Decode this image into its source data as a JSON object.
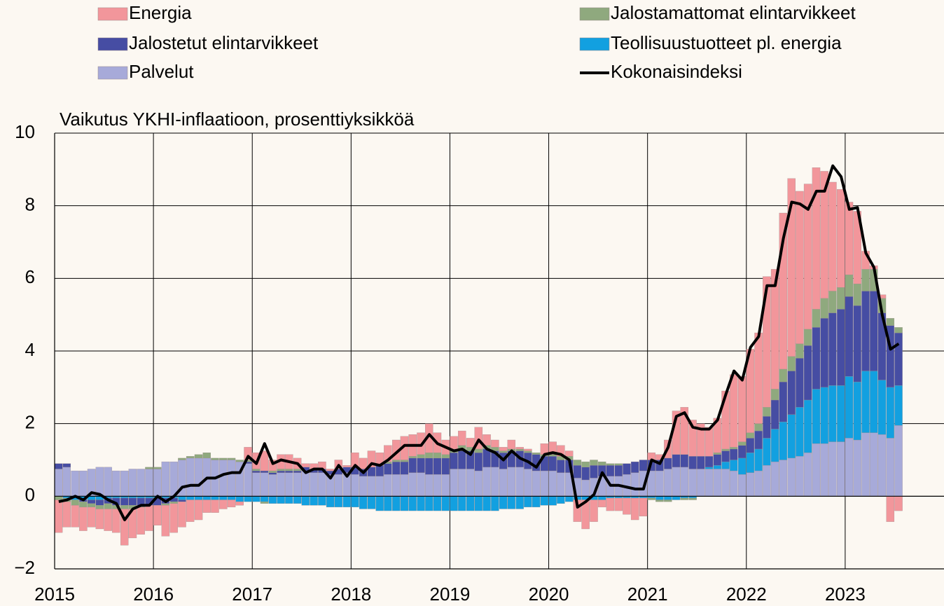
{
  "chart_data": {
    "type": "stacked_bar",
    "y_axis_label": "Vaikutus YKHI-inflaatioon, prosenttiyksikköä",
    "xlim": [
      2015,
      2024
    ],
    "xticks": [
      2015,
      2016,
      2017,
      2018,
      2019,
      2020,
      2021,
      2022,
      2023
    ],
    "ylim": [
      -2,
      10
    ],
    "yticks": [
      {
        "value": -2,
        "label": "−2"
      },
      0,
      2,
      4,
      6,
      8,
      10
    ],
    "grid": true,
    "x": [
      2015,
      2015.083,
      2015.167,
      2015.25,
      2015.333,
      2015.417,
      2015.5,
      2015.583,
      2015.667,
      2015.75,
      2015.833,
      2015.917,
      2016,
      2016.083,
      2016.167,
      2016.25,
      2016.333,
      2016.417,
      2016.5,
      2016.583,
      2016.667,
      2016.75,
      2016.833,
      2016.917,
      2017,
      2017.083,
      2017.167,
      2017.25,
      2017.333,
      2017.417,
      2017.5,
      2017.583,
      2017.667,
      2017.75,
      2017.833,
      2017.917,
      2018,
      2018.083,
      2018.167,
      2018.25,
      2018.333,
      2018.417,
      2018.5,
      2018.583,
      2018.667,
      2018.75,
      2018.833,
      2018.917,
      2019,
      2019.083,
      2019.167,
      2019.25,
      2019.333,
      2019.417,
      2019.5,
      2019.583,
      2019.667,
      2019.75,
      2019.833,
      2019.917,
      2020,
      2020.083,
      2020.167,
      2020.25,
      2020.333,
      2020.417,
      2020.5,
      2020.583,
      2020.667,
      2020.75,
      2020.833,
      2020.917,
      2021,
      2021.083,
      2021.167,
      2021.25,
      2021.333,
      2021.417,
      2021.5,
      2021.583,
      2021.667,
      2021.75,
      2021.833,
      2021.917,
      2022,
      2022.083,
      2022.167,
      2022.25,
      2022.333,
      2022.417,
      2022.5,
      2022.583,
      2022.667,
      2022.75,
      2022.833,
      2022.917,
      2023,
      2023.083,
      2023.167,
      2023.25,
      2023.333,
      2023.417,
      2023.5
    ],
    "series": [
      {
        "name": "Palvelut",
        "color": "#a7aad9",
        "type": "bar",
        "values": [
          0.75,
          0.8,
          0.7,
          0.7,
          0.75,
          0.8,
          0.8,
          0.7,
          0.7,
          0.75,
          0.75,
          0.75,
          0.75,
          0.95,
          0.95,
          1.0,
          1.05,
          1.05,
          1.05,
          1.0,
          1.0,
          1.0,
          0.95,
          0.9,
          0.65,
          0.65,
          0.6,
          0.65,
          0.65,
          0.65,
          0.7,
          0.65,
          0.65,
          0.6,
          0.6,
          0.65,
          0.6,
          0.55,
          0.55,
          0.55,
          0.6,
          0.6,
          0.6,
          0.65,
          0.65,
          0.6,
          0.6,
          0.6,
          0.75,
          0.75,
          0.75,
          0.7,
          0.8,
          0.8,
          0.75,
          0.8,
          0.8,
          0.75,
          0.7,
          0.7,
          0.7,
          0.65,
          0.65,
          0.5,
          0.45,
          0.5,
          0.55,
          0.55,
          0.55,
          0.6,
          0.65,
          0.7,
          0.7,
          0.7,
          0.75,
          0.8,
          0.8,
          0.75,
          0.75,
          0.75,
          0.75,
          0.75,
          0.7,
          0.6,
          0.65,
          0.7,
          0.85,
          0.95,
          1.0,
          1.05,
          1.1,
          1.2,
          1.45,
          1.45,
          1.5,
          1.5,
          1.6,
          1.55,
          1.75,
          1.75,
          1.7,
          1.6,
          1.95
        ]
      },
      {
        "name": "Teollisuustuotteet pl. energia",
        "color": "#12a0e0",
        "type": "bar",
        "values": [
          0,
          -0.05,
          -0.1,
          -0.1,
          -0.1,
          -0.1,
          -0.05,
          -0.05,
          -0.05,
          -0.05,
          -0.05,
          -0.05,
          -0.05,
          -0.05,
          -0.05,
          -0.1,
          -0.1,
          -0.1,
          -0.1,
          -0.1,
          -0.1,
          -0.1,
          -0.15,
          -0.15,
          -0.15,
          -0.15,
          -0.2,
          -0.2,
          -0.2,
          -0.2,
          -0.25,
          -0.25,
          -0.25,
          -0.3,
          -0.3,
          -0.3,
          -0.3,
          -0.35,
          -0.35,
          -0.4,
          -0.4,
          -0.4,
          -0.4,
          -0.4,
          -0.4,
          -0.4,
          -0.4,
          -0.4,
          -0.4,
          -0.4,
          -0.4,
          -0.4,
          -0.4,
          -0.4,
          -0.35,
          -0.35,
          -0.35,
          -0.3,
          -0.3,
          -0.25,
          -0.25,
          -0.2,
          -0.15,
          -0.1,
          -0.1,
          -0.1,
          -0.1,
          -0.05,
          -0.05,
          -0.05,
          -0.05,
          -0.05,
          -0.05,
          -0.1,
          -0.1,
          -0.1,
          -0.05,
          -0.05,
          0,
          0.05,
          0.1,
          0.2,
          0.3,
          0.45,
          0.55,
          0.6,
          0.75,
          0.9,
          1.05,
          1.2,
          1.35,
          1.45,
          1.5,
          1.55,
          1.55,
          1.55,
          1.7,
          1.6,
          1.7,
          1.7,
          1.5,
          1.4,
          1.1
        ]
      },
      {
        "name": "Jalostetut elintarvikkeet",
        "color": "#464da3",
        "type": "bar",
        "values": [
          0.15,
          0.1,
          0,
          -0.05,
          -0.1,
          -0.15,
          -0.15,
          -0.2,
          -0.2,
          -0.2,
          -0.2,
          -0.2,
          -0.2,
          -0.15,
          -0.1,
          -0.05,
          0,
          0,
          0,
          0,
          0,
          0,
          0,
          0.05,
          0.05,
          0.05,
          0.05,
          0.05,
          0.05,
          0.05,
          0.1,
          0.1,
          0.1,
          0.1,
          0.15,
          0.15,
          0.2,
          0.2,
          0.25,
          0.3,
          0.3,
          0.35,
          0.35,
          0.4,
          0.4,
          0.45,
          0.45,
          0.45,
          0.45,
          0.5,
          0.5,
          0.5,
          0.5,
          0.45,
          0.45,
          0.45,
          0.45,
          0.45,
          0.45,
          0.4,
          0.4,
          0.35,
          0.35,
          0.35,
          0.35,
          0.35,
          0.3,
          0.3,
          0.3,
          0.3,
          0.3,
          0.3,
          0.3,
          0.3,
          0.3,
          0.35,
          0.35,
          0.35,
          0.35,
          0.3,
          0.3,
          0.3,
          0.3,
          0.35,
          0.4,
          0.5,
          0.6,
          0.8,
          1.1,
          1.2,
          1.35,
          1.5,
          1.7,
          1.9,
          2.0,
          2.1,
          2.2,
          2.1,
          2.2,
          2.2,
          1.85,
          1.7,
          1.45
        ]
      },
      {
        "name": "Jalostamattomat elintarvikkeet",
        "color": "#8fa97e",
        "type": "bar",
        "values": [
          -0.1,
          -0.1,
          -0.15,
          -0.15,
          -0.1,
          -0.1,
          -0.15,
          -0.1,
          -0.1,
          -0.1,
          -0.05,
          0.05,
          0.05,
          -0.05,
          -0.05,
          0.05,
          0.05,
          0.1,
          0.15,
          0.05,
          0.05,
          0.05,
          0.05,
          0.05,
          0.05,
          -0.05,
          0.05,
          0.05,
          0.05,
          0.05,
          0,
          0,
          0,
          0,
          0,
          0,
          0,
          0,
          0,
          0,
          0.05,
          0.05,
          0.05,
          0.05,
          0.1,
          0.15,
          0.15,
          0.1,
          0.1,
          0.15,
          0.1,
          0.1,
          0.1,
          0.1,
          0.05,
          0.05,
          0.05,
          0.05,
          0.05,
          0.05,
          0.05,
          0.1,
          0.1,
          0.15,
          0.15,
          0.15,
          0.1,
          0.05,
          0.05,
          0,
          0,
          0,
          -0.05,
          -0.05,
          -0.05,
          0,
          -0.05,
          -0.05,
          0,
          0,
          0.05,
          0.05,
          0.05,
          0.1,
          0.15,
          0.2,
          0.25,
          0.3,
          0.35,
          0.4,
          0.4,
          0.45,
          0.5,
          0.55,
          0.6,
          0.6,
          0.6,
          0.6,
          0.6,
          0.6,
          0.4,
          0.2,
          0.15
        ]
      },
      {
        "name": "Energia",
        "color": "#f2969b",
        "type": "bar",
        "values": [
          -0.9,
          -0.7,
          -0.6,
          -0.65,
          -0.55,
          -0.55,
          -0.6,
          -0.65,
          -1.0,
          -0.8,
          -0.75,
          -0.7,
          -0.55,
          -0.85,
          -0.8,
          -0.7,
          -0.6,
          -0.55,
          -0.35,
          -0.35,
          -0.25,
          -0.2,
          -0.1,
          0.35,
          0.45,
          0.55,
          0.3,
          0.4,
          0.4,
          0.3,
          0.1,
          0.15,
          0.2,
          0.05,
          0.25,
          0.05,
          0.4,
          0.3,
          0.45,
          0.35,
          0.45,
          0.55,
          0.65,
          0.6,
          0.6,
          0.8,
          0.55,
          0.4,
          0.35,
          0.4,
          0.25,
          0.6,
          0.3,
          0.2,
          0.1,
          0.25,
          0.05,
          0.05,
          0,
          0.3,
          0.35,
          0.3,
          0.15,
          -0.6,
          -0.8,
          -0.6,
          -0.2,
          -0.35,
          -0.35,
          -0.45,
          -0.6,
          -0.5,
          0.2,
          0.15,
          0.5,
          1.2,
          1.3,
          1.0,
          0.9,
          0.8,
          0.95,
          1.6,
          2.0,
          1.8,
          2.3,
          2.5,
          3.6,
          3.3,
          4.3,
          4.9,
          4.2,
          4.0,
          3.9,
          3.5,
          3.0,
          2.7,
          2.0,
          2.0,
          0.5,
          0.1,
          0.1,
          -0.7,
          -0.4
        ]
      },
      {
        "name": "Kokonaisindeksi",
        "color": "#000000",
        "type": "line",
        "values": [
          -0.15,
          -0.1,
          0,
          -0.1,
          0.1,
          0.05,
          -0.1,
          -0.2,
          -0.65,
          -0.35,
          -0.25,
          -0.25,
          0,
          -0.15,
          0,
          0.25,
          0.3,
          0.3,
          0.5,
          0.5,
          0.6,
          0.65,
          0.65,
          1.1,
          0.9,
          1.45,
          0.9,
          1.0,
          0.95,
          0.9,
          0.65,
          0.75,
          0.75,
          0.5,
          0.85,
          0.55,
          0.85,
          0.65,
          0.9,
          0.85,
          1.0,
          1.2,
          1.4,
          1.4,
          1.4,
          1.7,
          1.45,
          1.35,
          1.25,
          1.3,
          1.15,
          1.55,
          1.3,
          1.2,
          1.0,
          1.25,
          1.05,
          0.95,
          0.8,
          1.15,
          1.2,
          1.15,
          1.0,
          -0.3,
          -0.15,
          0.05,
          0.65,
          0.3,
          0.3,
          0.25,
          0.2,
          0.2,
          1.0,
          0.9,
          1.35,
          2.2,
          2.3,
          1.9,
          1.85,
          1.85,
          2.1,
          2.8,
          3.45,
          3.2,
          4.1,
          4.4,
          5.8,
          5.8,
          7.1,
          8.1,
          8.05,
          7.9,
          8.4,
          8.4,
          9.1,
          8.8,
          7.9,
          7.95,
          6.7,
          6.3,
          5.0,
          4.05,
          4.2
        ]
      }
    ]
  }
}
